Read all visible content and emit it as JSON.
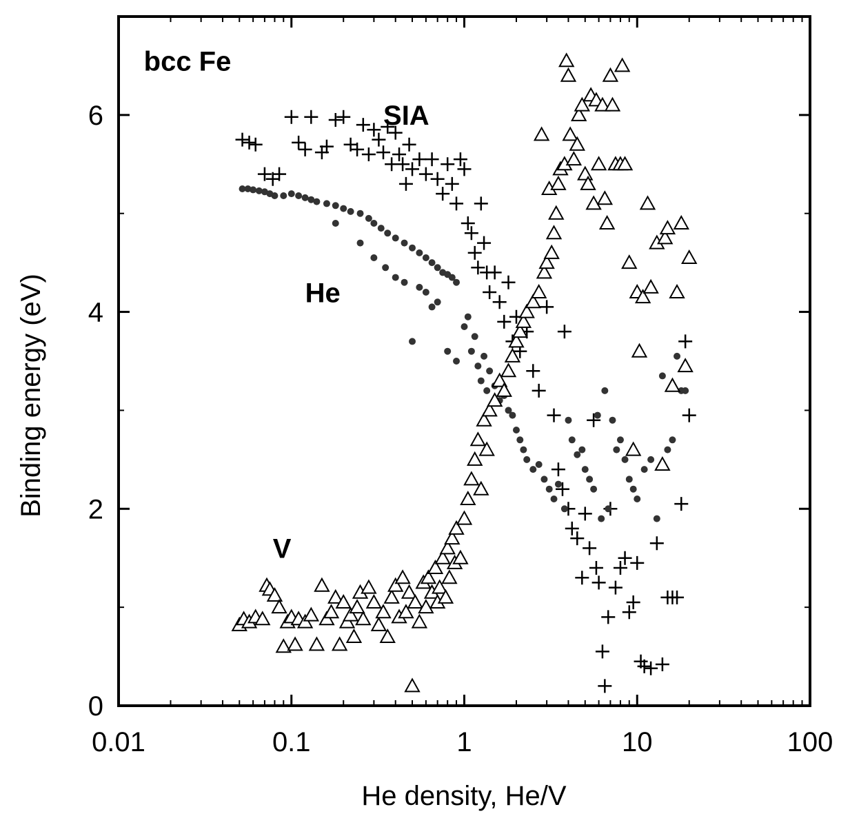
{
  "chart_data": {
    "type": "scatter",
    "title": "",
    "xlabel": "He density, He/V",
    "ylabel": "Binding energy (eV)",
    "xscale": "log",
    "xlim": [
      0.01,
      100
    ],
    "ylim": [
      0,
      7
    ],
    "x_ticks": [
      0.01,
      0.1,
      1,
      10,
      100
    ],
    "x_tick_labels": [
      "0.01",
      "0.1",
      "1",
      "10",
      "100"
    ],
    "y_ticks": [
      0,
      2,
      4,
      6
    ],
    "y_tick_labels": [
      "0",
      "2",
      "4",
      "6"
    ],
    "grid": false,
    "legend": "none",
    "annotations": [
      {
        "text": "bcc Fe",
        "x": 0.014,
        "y": 6.45
      },
      {
        "text": "SIA",
        "x": 0.34,
        "y": 5.9
      },
      {
        "text": "He",
        "x": 0.12,
        "y": 4.1
      },
      {
        "text": "V",
        "x": 0.078,
        "y": 1.5
      }
    ],
    "series": [
      {
        "label": "SIA",
        "marker": "plus",
        "points": [
          [
            0.052,
            5.75
          ],
          [
            0.057,
            5.72
          ],
          [
            0.062,
            5.7
          ],
          [
            0.07,
            5.4
          ],
          [
            0.078,
            5.35
          ],
          [
            0.085,
            5.4
          ],
          [
            0.1,
            5.98
          ],
          [
            0.11,
            5.72
          ],
          [
            0.12,
            5.65
          ],
          [
            0.13,
            5.98
          ],
          [
            0.15,
            5.62
          ],
          [
            0.16,
            5.68
          ],
          [
            0.18,
            5.95
          ],
          [
            0.2,
            5.98
          ],
          [
            0.22,
            5.7
          ],
          [
            0.24,
            5.65
          ],
          [
            0.26,
            5.9
          ],
          [
            0.28,
            5.6
          ],
          [
            0.3,
            5.85
          ],
          [
            0.32,
            5.75
          ],
          [
            0.34,
            5.62
          ],
          [
            0.36,
            5.88
          ],
          [
            0.38,
            5.5
          ],
          [
            0.4,
            5.82
          ],
          [
            0.42,
            5.6
          ],
          [
            0.44,
            5.5
          ],
          [
            0.46,
            5.3
          ],
          [
            0.48,
            5.7
          ],
          [
            0.5,
            5.45
          ],
          [
            0.55,
            5.55
          ],
          [
            0.6,
            5.4
          ],
          [
            0.65,
            5.55
          ],
          [
            0.7,
            5.35
          ],
          [
            0.75,
            5.2
          ],
          [
            0.8,
            5.5
          ],
          [
            0.85,
            5.3
          ],
          [
            0.9,
            5.1
          ],
          [
            0.95,
            5.55
          ],
          [
            1.0,
            5.45
          ],
          [
            1.05,
            4.9
          ],
          [
            1.1,
            4.8
          ],
          [
            1.15,
            4.6
          ],
          [
            1.2,
            4.45
          ],
          [
            1.25,
            5.1
          ],
          [
            1.3,
            4.7
          ],
          [
            1.35,
            4.4
          ],
          [
            1.4,
            4.2
          ],
          [
            1.5,
            4.4
          ],
          [
            1.6,
            4.1
          ],
          [
            1.7,
            3.9
          ],
          [
            1.8,
            4.3
          ],
          [
            1.9,
            3.7
          ],
          [
            2.0,
            3.95
          ],
          [
            2.1,
            3.6
          ],
          [
            2.3,
            3.8
          ],
          [
            2.5,
            3.4
          ],
          [
            2.7,
            3.2
          ],
          [
            3.0,
            4.05
          ],
          [
            3.3,
            2.95
          ],
          [
            3.5,
            2.4
          ],
          [
            3.7,
            2.2
          ],
          [
            3.8,
            3.8
          ],
          [
            4.0,
            2.0
          ],
          [
            4.2,
            1.8
          ],
          [
            4.5,
            1.7
          ],
          [
            4.8,
            1.3
          ],
          [
            5.0,
            1.95
          ],
          [
            5.3,
            1.6
          ],
          [
            5.6,
            2.9
          ],
          [
            5.8,
            1.4
          ],
          [
            6.0,
            1.25
          ],
          [
            6.3,
            0.55
          ],
          [
            6.5,
            0.2
          ],
          [
            6.8,
            0.9
          ],
          [
            7.0,
            2.0
          ],
          [
            7.5,
            1.2
          ],
          [
            8.0,
            1.4
          ],
          [
            8.5,
            1.5
          ],
          [
            9.0,
            0.95
          ],
          [
            9.5,
            1.05
          ],
          [
            10.0,
            1.45
          ],
          [
            10.5,
            0.45
          ],
          [
            11.0,
            0.4
          ],
          [
            12.0,
            0.38
          ],
          [
            13.0,
            1.65
          ],
          [
            14.0,
            0.42
          ],
          [
            15.0,
            1.1
          ],
          [
            16.0,
            1.1
          ],
          [
            17.0,
            1.1
          ],
          [
            18.0,
            2.05
          ],
          [
            19.0,
            3.7
          ],
          [
            20.0,
            2.95
          ]
        ]
      },
      {
        "label": "He",
        "marker": "dot",
        "points": [
          [
            0.052,
            5.25
          ],
          [
            0.056,
            5.25
          ],
          [
            0.06,
            5.24
          ],
          [
            0.065,
            5.23
          ],
          [
            0.07,
            5.22
          ],
          [
            0.075,
            5.2
          ],
          [
            0.08,
            5.18
          ],
          [
            0.09,
            5.18
          ],
          [
            0.1,
            5.2
          ],
          [
            0.11,
            5.18
          ],
          [
            0.12,
            5.16
          ],
          [
            0.13,
            5.14
          ],
          [
            0.14,
            5.12
          ],
          [
            0.16,
            5.1
          ],
          [
            0.18,
            5.08
          ],
          [
            0.2,
            5.05
          ],
          [
            0.22,
            5.02
          ],
          [
            0.25,
            5.0
          ],
          [
            0.28,
            4.95
          ],
          [
            0.3,
            4.9
          ],
          [
            0.33,
            4.85
          ],
          [
            0.36,
            4.8
          ],
          [
            0.4,
            4.75
          ],
          [
            0.45,
            4.7
          ],
          [
            0.5,
            4.65
          ],
          [
            0.55,
            4.6
          ],
          [
            0.6,
            4.55
          ],
          [
            0.65,
            4.5
          ],
          [
            0.7,
            4.45
          ],
          [
            0.75,
            4.4
          ],
          [
            0.8,
            4.38
          ],
          [
            0.85,
            4.35
          ],
          [
            0.9,
            4.3
          ],
          [
            0.18,
            4.9
          ],
          [
            0.25,
            4.7
          ],
          [
            0.3,
            4.55
          ],
          [
            0.35,
            4.45
          ],
          [
            0.4,
            4.35
          ],
          [
            0.45,
            4.3
          ],
          [
            0.5,
            3.7
          ],
          [
            0.55,
            4.25
          ],
          [
            0.6,
            4.2
          ],
          [
            0.65,
            4.05
          ],
          [
            0.7,
            4.1
          ],
          [
            0.8,
            3.6
          ],
          [
            0.9,
            3.5
          ],
          [
            1.0,
            3.85
          ],
          [
            1.05,
            3.95
          ],
          [
            1.1,
            3.6
          ],
          [
            1.15,
            3.75
          ],
          [
            1.2,
            3.45
          ],
          [
            1.25,
            3.3
          ],
          [
            1.3,
            3.55
          ],
          [
            1.35,
            3.2
          ],
          [
            1.4,
            3.4
          ],
          [
            1.5,
            3.25
          ],
          [
            1.6,
            3.1
          ],
          [
            1.7,
            3.15
          ],
          [
            1.8,
            3.0
          ],
          [
            1.9,
            2.95
          ],
          [
            2.0,
            2.8
          ],
          [
            2.1,
            2.7
          ],
          [
            2.2,
            2.6
          ],
          [
            2.3,
            2.5
          ],
          [
            2.5,
            2.4
          ],
          [
            2.7,
            2.45
          ],
          [
            2.9,
            2.3
          ],
          [
            3.1,
            2.2
          ],
          [
            3.3,
            2.1
          ],
          [
            3.5,
            2.25
          ],
          [
            3.8,
            2.0
          ],
          [
            4.0,
            2.9
          ],
          [
            4.2,
            2.7
          ],
          [
            4.5,
            2.55
          ],
          [
            4.8,
            2.6
          ],
          [
            5.0,
            2.4
          ],
          [
            5.3,
            2.3
          ],
          [
            5.6,
            2.2
          ],
          [
            5.9,
            2.95
          ],
          [
            6.2,
            1.9
          ],
          [
            6.5,
            3.2
          ],
          [
            6.8,
            2.0
          ],
          [
            7.2,
            2.9
          ],
          [
            7.6,
            2.6
          ],
          [
            8.0,
            2.7
          ],
          [
            8.5,
            2.5
          ],
          [
            9.0,
            2.3
          ],
          [
            9.5,
            2.2
          ],
          [
            10.0,
            2.1
          ],
          [
            11.0,
            2.4
          ],
          [
            12.0,
            2.5
          ],
          [
            13.0,
            1.9
          ],
          [
            14.0,
            3.35
          ],
          [
            15.0,
            2.6
          ],
          [
            16.0,
            2.7
          ],
          [
            17.0,
            3.55
          ],
          [
            18.0,
            3.2
          ],
          [
            19.0,
            3.2
          ]
        ]
      },
      {
        "label": "V",
        "marker": "triangle",
        "points": [
          [
            0.05,
            0.82
          ],
          [
            0.053,
            0.88
          ],
          [
            0.057,
            0.85
          ],
          [
            0.062,
            0.9
          ],
          [
            0.068,
            0.88
          ],
          [
            0.072,
            1.22
          ],
          [
            0.075,
            1.18
          ],
          [
            0.08,
            1.12
          ],
          [
            0.085,
            1.0
          ],
          [
            0.09,
            0.6
          ],
          [
            0.095,
            0.85
          ],
          [
            0.1,
            0.9
          ],
          [
            0.105,
            0.62
          ],
          [
            0.11,
            0.88
          ],
          [
            0.12,
            0.85
          ],
          [
            0.13,
            0.92
          ],
          [
            0.14,
            0.62
          ],
          [
            0.15,
            1.22
          ],
          [
            0.16,
            0.88
          ],
          [
            0.17,
            0.95
          ],
          [
            0.18,
            1.1
          ],
          [
            0.19,
            0.62
          ],
          [
            0.2,
            1.05
          ],
          [
            0.21,
            0.85
          ],
          [
            0.22,
            0.92
          ],
          [
            0.23,
            0.7
          ],
          [
            0.24,
            1.0
          ],
          [
            0.25,
            1.15
          ],
          [
            0.26,
            0.88
          ],
          [
            0.28,
            1.2
          ],
          [
            0.3,
            1.05
          ],
          [
            0.32,
            0.82
          ],
          [
            0.34,
            0.95
          ],
          [
            0.36,
            0.7
          ],
          [
            0.38,
            1.1
          ],
          [
            0.4,
            1.22
          ],
          [
            0.42,
            0.9
          ],
          [
            0.44,
            1.3
          ],
          [
            0.46,
            0.95
          ],
          [
            0.48,
            1.15
          ],
          [
            0.5,
            0.2
          ],
          [
            0.52,
            1.05
          ],
          [
            0.55,
            0.85
          ],
          [
            0.58,
            1.25
          ],
          [
            0.6,
            1.0
          ],
          [
            0.62,
            1.3
          ],
          [
            0.65,
            1.15
          ],
          [
            0.68,
            1.4
          ],
          [
            0.7,
            1.05
          ],
          [
            0.72,
            1.2
          ],
          [
            0.75,
            1.5
          ],
          [
            0.78,
            1.1
          ],
          [
            0.8,
            1.6
          ],
          [
            0.82,
            1.3
          ],
          [
            0.85,
            1.7
          ],
          [
            0.88,
            1.45
          ],
          [
            0.9,
            1.8
          ],
          [
            0.95,
            1.5
          ],
          [
            1.0,
            1.9
          ],
          [
            1.05,
            2.1
          ],
          [
            1.1,
            2.3
          ],
          [
            1.15,
            2.5
          ],
          [
            1.2,
            2.7
          ],
          [
            1.25,
            2.2
          ],
          [
            1.3,
            2.9
          ],
          [
            1.35,
            2.6
          ],
          [
            1.4,
            3.0
          ],
          [
            1.5,
            3.1
          ],
          [
            1.6,
            3.3
          ],
          [
            1.7,
            3.2
          ],
          [
            1.8,
            3.4
          ],
          [
            1.9,
            3.55
          ],
          [
            2.0,
            3.7
          ],
          [
            2.1,
            3.8
          ],
          [
            2.2,
            3.9
          ],
          [
            2.3,
            4.0
          ],
          [
            2.5,
            4.1
          ],
          [
            2.7,
            4.2
          ],
          [
            2.8,
            5.8
          ],
          [
            2.9,
            4.4
          ],
          [
            3.0,
            4.5
          ],
          [
            3.1,
            5.25
          ],
          [
            3.2,
            4.6
          ],
          [
            3.3,
            4.8
          ],
          [
            3.4,
            5.0
          ],
          [
            3.5,
            5.3
          ],
          [
            3.6,
            5.45
          ],
          [
            3.8,
            5.5
          ],
          [
            3.9,
            6.55
          ],
          [
            4.0,
            6.4
          ],
          [
            4.1,
            5.8
          ],
          [
            4.3,
            5.55
          ],
          [
            4.5,
            5.7
          ],
          [
            4.6,
            6.0
          ],
          [
            4.8,
            6.1
          ],
          [
            5.0,
            5.4
          ],
          [
            5.2,
            5.3
          ],
          [
            5.4,
            6.2
          ],
          [
            5.6,
            5.1
          ],
          [
            5.8,
            6.15
          ],
          [
            6.0,
            5.5
          ],
          [
            6.3,
            6.1
          ],
          [
            6.5,
            5.15
          ],
          [
            6.7,
            4.9
          ],
          [
            7.0,
            6.4
          ],
          [
            7.2,
            6.1
          ],
          [
            7.5,
            5.5
          ],
          [
            8.0,
            5.5
          ],
          [
            8.2,
            6.5
          ],
          [
            8.5,
            5.5
          ],
          [
            9.0,
            4.5
          ],
          [
            9.5,
            2.6
          ],
          [
            10.0,
            4.2
          ],
          [
            10.3,
            3.6
          ],
          [
            10.8,
            4.15
          ],
          [
            11.5,
            5.1
          ],
          [
            12.0,
            4.25
          ],
          [
            13.0,
            4.7
          ],
          [
            14.0,
            2.45
          ],
          [
            14.5,
            4.75
          ],
          [
            15.0,
            4.85
          ],
          [
            16.0,
            3.25
          ],
          [
            17.0,
            4.2
          ],
          [
            18.0,
            4.9
          ],
          [
            19.0,
            3.45
          ],
          [
            20.0,
            4.55
          ]
        ]
      }
    ]
  }
}
